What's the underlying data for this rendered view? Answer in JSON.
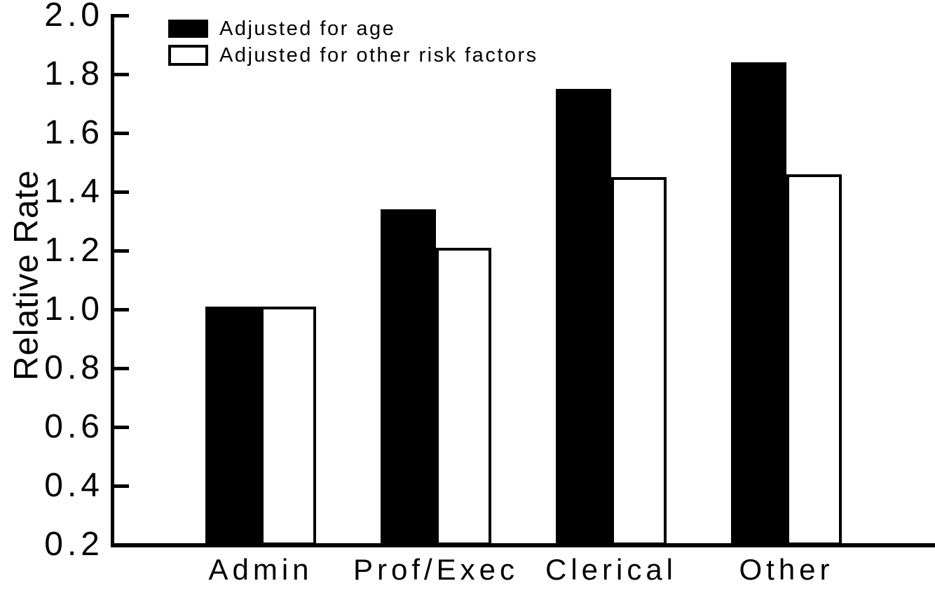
{
  "chart_data": {
    "type": "bar",
    "title": "",
    "xlabel": "",
    "ylabel": "Relative Rate",
    "categories": [
      "Admin",
      "Prof/Exec",
      "Clerical",
      "Other"
    ],
    "series": [
      {
        "name": "Adjusted for age",
        "fill": "black",
        "values": [
          1.01,
          1.34,
          1.75,
          1.84
        ]
      },
      {
        "name": "Adjusted for other risk factors",
        "fill": "white-outlined",
        "values": [
          1.01,
          1.21,
          1.45,
          1.46
        ]
      }
    ],
    "ylim": [
      0.2,
      2.0
    ],
    "yticks": [
      2.0,
      1.8,
      1.6,
      1.4,
      1.2,
      1.0,
      0.8,
      0.6,
      0.4,
      0.2
    ],
    "ytick_labels": [
      "2.0",
      "1.8",
      "1.6",
      "1.4",
      "1.2",
      "1.0",
      "0.8",
      "0.6",
      "0.4",
      "0.2"
    ],
    "grid": false,
    "legend_position": "top-left",
    "bars_baseline_value": 0.2,
    "colors": {
      "foreground": "#000000",
      "background": "#ffffff"
    }
  }
}
